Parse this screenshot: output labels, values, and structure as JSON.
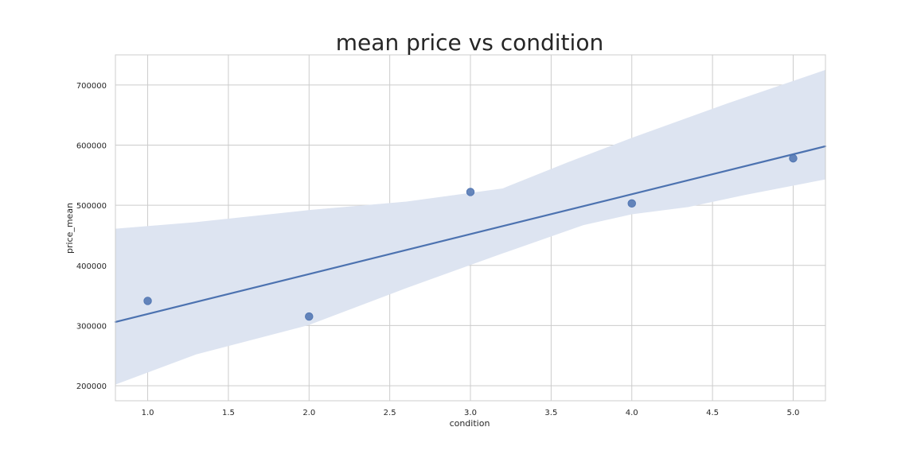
{
  "chart_data": {
    "type": "scatter",
    "title": "mean price vs condition",
    "xlabel": "condition",
    "ylabel": "price_mean",
    "xlim": [
      0.8,
      5.2
    ],
    "ylim": [
      175000,
      750000
    ],
    "grid": true,
    "x_ticks": [
      "1.0",
      "1.5",
      "2.0",
      "2.5",
      "3.0",
      "3.5",
      "4.0",
      "4.5",
      "5.0"
    ],
    "y_ticks": [
      "200000",
      "300000",
      "400000",
      "500000",
      "600000",
      "700000"
    ],
    "series": [
      {
        "points": [
          {
            "x": 1.0,
            "y": 341000
          },
          {
            "x": 2.0,
            "y": 315000
          },
          {
            "x": 3.0,
            "y": 522000
          },
          {
            "x": 4.0,
            "y": 503000
          },
          {
            "x": 5.0,
            "y": 578000
          }
        ],
        "regression_line": {
          "x": [
            0.8,
            5.2
          ],
          "y": [
            306000,
            598000
          ]
        },
        "confidence_band": {
          "upper": [
            [
              0.8,
              461000
            ],
            [
              1.3,
              472000
            ],
            [
              2.0,
              492000
            ],
            [
              2.6,
              506000
            ],
            [
              3.2,
              528000
            ],
            [
              3.6,
              571000
            ],
            [
              4.0,
              612000
            ],
            [
              4.6,
              670000
            ],
            [
              5.2,
              725000
            ]
          ],
          "lower": [
            [
              0.8,
              202000
            ],
            [
              1.3,
              252000
            ],
            [
              2.0,
              301000
            ],
            [
              2.6,
              362000
            ],
            [
              3.2,
              420000
            ],
            [
              3.7,
              467000
            ],
            [
              4.0,
              485000
            ],
            [
              4.35,
              497000
            ],
            [
              4.7,
              517000
            ],
            [
              5.2,
              543000
            ]
          ]
        }
      }
    ],
    "colors": {
      "point": "#4c72b0",
      "line": "#4c72b0",
      "band": "#dde4f1",
      "grid": "#cccccc",
      "text": "#262626"
    }
  }
}
